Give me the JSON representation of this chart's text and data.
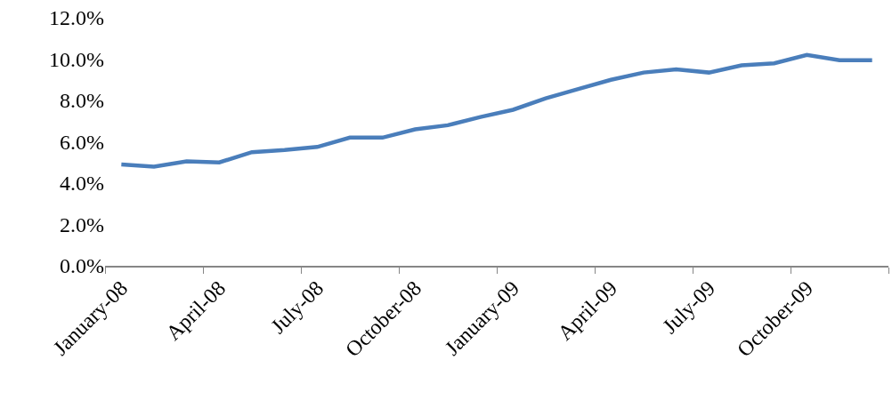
{
  "chart_data": {
    "type": "line",
    "categories": [
      "January-08",
      null,
      null,
      "April-08",
      null,
      null,
      "July-08",
      null,
      null,
      "October-08",
      null,
      null,
      "January-09",
      null,
      null,
      "April-09",
      null,
      null,
      "July-09",
      null,
      null,
      "October-09",
      null,
      null
    ],
    "series": [
      {
        "color": "#4a7ebb",
        "values": [
          4.9,
          4.8,
          5.05,
          5.0,
          5.5,
          5.6,
          5.75,
          6.2,
          6.2,
          6.6,
          6.8,
          7.2,
          7.55,
          8.1,
          8.55,
          9.0,
          9.35,
          9.5,
          9.35,
          9.7,
          9.8,
          10.2,
          9.95,
          9.95
        ]
      }
    ],
    "ylim": [
      0,
      12
    ],
    "yticks": [
      {
        "value": 0,
        "label": "0.0%"
      },
      {
        "value": 2,
        "label": "2.0%"
      },
      {
        "value": 4,
        "label": "4.0%"
      },
      {
        "value": 6,
        "label": "6.0%"
      },
      {
        "value": 8,
        "label": "8.0%"
      },
      {
        "value": 10,
        "label": "10.0%"
      },
      {
        "value": 12,
        "label": "12.0%"
      }
    ],
    "grid": false,
    "marker": "none",
    "line_style": "solid"
  }
}
